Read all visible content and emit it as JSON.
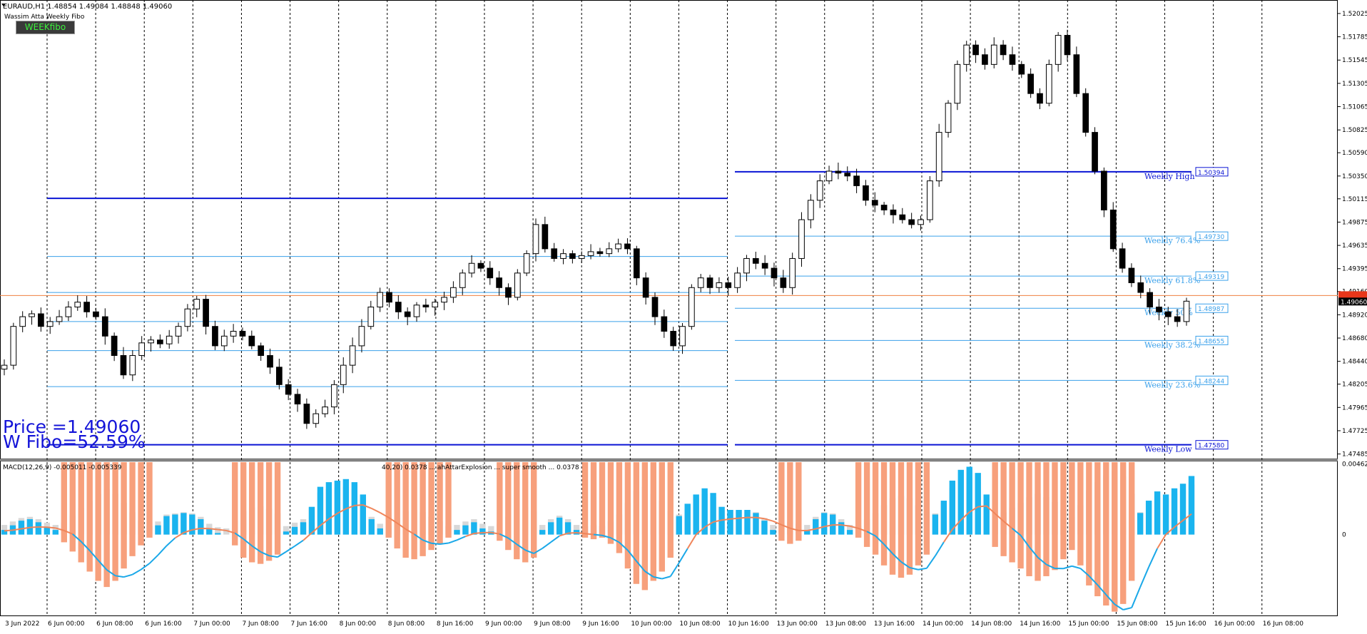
{
  "header": {
    "symbol_line": "EURAUD,H1  1.48854 1.49084 1.48848 1.49060",
    "indicator_name": "Wassim Atta Weekly Fibo",
    "week_button": "WEEKfibo"
  },
  "overlay": {
    "price_text": "Price =1.49060",
    "fibo_text": "W Fibo=52.59%"
  },
  "colors": {
    "bull_candle": "#ffffff",
    "bear_candle": "#000000",
    "fibo_dark": "#0a14d4",
    "fibo_light": "#3aa0ea",
    "macd_hist_pos": "#1ab4ef",
    "macd_hist_neg": "#f7a07c",
    "macd_signal_pos": "#f0855a",
    "macd_signal_neg": "#1aa8e8",
    "shadow_hist": "#d8d8d8",
    "price_line": "#f08040"
  },
  "chart_data": [
    {
      "type": "candlestick",
      "title": "EURAUD,H1",
      "ohlc_current": {
        "open": 1.48854,
        "high": 1.49084,
        "low": 1.48848,
        "close": 1.4906
      },
      "ylim": [
        1.4746,
        1.5212
      ],
      "y_ticks": [
        "1.52025",
        "1.51785",
        "1.51545",
        "1.51305",
        "1.51065",
        "1.50825",
        "1.50590",
        "1.50350",
        "1.50115",
        "1.49875",
        "1.49635",
        "1.49395",
        "1.49160",
        "1.48920",
        "1.48680",
        "1.48440",
        "1.48205",
        "1.47965",
        "1.47725",
        "1.47485"
      ],
      "current_price_label": "1.49060",
      "current_price_line": "1.49118",
      "x_ticks": [
        "3 Jun 2022",
        "6 Jun 00:00",
        "6 Jun 08:00",
        "6 Jun 16:00",
        "7 Jun 00:00",
        "7 Jun 08:00",
        "7 Jun 16:00",
        "8 Jun 00:00",
        "8 Jun 08:00",
        "8 Jun 16:00",
        "9 Jun 00:00",
        "9 Jun 08:00",
        "9 Jun 16:00",
        "10 Jun 00:00",
        "10 Jun 08:00",
        "10 Jun 16:00",
        "13 Jun 00:00",
        "13 Jun 08:00",
        "13 Jun 16:00",
        "14 Jun 00:00",
        "14 Jun 08:00",
        "14 Jun 16:00",
        "15 Jun 00:00",
        "15 Jun 08:00",
        "15 Jun 16:00",
        "16 Jun 00:00",
        "16 Jun 08:00"
      ],
      "close_path": [
        1.484,
        1.488,
        1.489,
        1.4893,
        1.488,
        1.4885,
        1.489,
        1.49,
        1.4905,
        1.4895,
        1.489,
        1.487,
        1.485,
        1.483,
        1.485,
        1.4863,
        1.4866,
        1.4862,
        1.487,
        1.488,
        1.4898,
        1.4908,
        1.488,
        1.486,
        1.487,
        1.4875,
        1.487,
        1.486,
        1.485,
        1.4838,
        1.482,
        1.481,
        1.48,
        1.478,
        1.479,
        1.4797,
        1.482,
        1.484,
        1.486,
        1.488,
        1.49,
        1.4915,
        1.4905,
        1.4895,
        1.489,
        1.4902,
        1.49,
        1.4905,
        1.491,
        1.492,
        1.4935,
        1.4945,
        1.494,
        1.493,
        1.492,
        1.491,
        1.4935,
        1.4955,
        1.4985,
        1.496,
        1.495,
        1.4955,
        1.495,
        1.4953,
        1.4957,
        1.4955,
        1.496,
        1.4965,
        1.496,
        1.493,
        1.491,
        1.489,
        1.4875,
        1.486,
        1.488,
        1.492,
        1.493,
        1.492,
        1.4925,
        1.492,
        1.4935,
        1.495,
        1.4945,
        1.494,
        1.493,
        1.492,
        1.495,
        1.499,
        1.501,
        1.503,
        1.504,
        1.5038,
        1.5035,
        1.5025,
        1.501,
        1.5005,
        1.5,
        1.4995,
        1.499,
        1.4985,
        1.499,
        1.503,
        1.508,
        1.511,
        1.515,
        1.517,
        1.516,
        1.515,
        1.517,
        1.516,
        1.515,
        1.514,
        1.512,
        1.511,
        1.515,
        1.518,
        1.516,
        1.512,
        1.508,
        1.504,
        1.5,
        1.496,
        1.494,
        1.4925,
        1.4915,
        1.49,
        1.4895,
        1.489,
        1.4885,
        1.4906
      ],
      "weekly_fibo": [
        {
          "name": "Weekly High",
          "value": 1.50394,
          "label": "1.50394"
        },
        {
          "name": "Weekly 76.4%",
          "value": 1.4973,
          "label": "1.49730"
        },
        {
          "name": "Weekly 61.8%",
          "value": 1.49319,
          "label": "1.49319"
        },
        {
          "name": "Weekly 50%",
          "value": 1.48987,
          "label": "1.48987"
        },
        {
          "name": "Weekly 38.2%",
          "value": 1.48655,
          "label": "1.48655"
        },
        {
          "name": "Weekly 23.6%",
          "value": 1.48244,
          "label": "1.48244"
        },
        {
          "name": "Weekly Low",
          "value": 1.4758,
          "label": "1.47580"
        }
      ],
      "prior_week_levels": {
        "high": 1.5012,
        "low": 1.4758
      }
    },
    {
      "type": "bar",
      "title": "MACD(12,26,9)",
      "header_text": "MACD(12,26,9) -0.005011 -0.005339",
      "mid_text": "40,20) 0.0378 ... ahAttarExplosion ... super smooth ... 0.0378",
      "y_ticks": [
        "0.004622",
        "0"
      ],
      "histogram": [
        0.0003,
        0.0006,
        0.0009,
        0.001,
        0.0008,
        0.0005,
        0.0003,
        -0.0005,
        -0.0011,
        -0.0018,
        -0.0024,
        -0.003,
        -0.0034,
        -0.003,
        -0.0022,
        -0.0014,
        -0.0007,
        -0.0002,
        0.0006,
        0.0012,
        0.0013,
        0.0014,
        0.0013,
        0.001,
        0.0004,
        0.0001,
        0.0,
        -0.0007,
        -0.0015,
        -0.0018,
        -0.0019,
        -0.0017,
        -0.0013,
        0.0002,
        0.0005,
        0.0008,
        0.0018,
        0.0031,
        0.0034,
        0.0035,
        0.0036,
        0.0034,
        0.0026,
        0.001,
        0.0004,
        -0.0002,
        -0.0009,
        -0.0015,
        -0.0016,
        -0.0014,
        -0.001,
        -0.0006,
        -0.0002,
        0.0003,
        0.0006,
        0.0008,
        0.0004,
        0.0002,
        -0.0004,
        -0.001,
        -0.0016,
        -0.0018,
        -0.0015,
        0.0003,
        0.0008,
        0.0011,
        0.0008,
        0.0003,
        -0.0002,
        -0.0003,
        -0.0002,
        -0.0006,
        -0.0012,
        -0.0022,
        -0.0032,
        -0.0036,
        -0.003,
        -0.0024,
        -0.0015,
        0.0012,
        0.002,
        0.0026,
        0.003,
        0.0027,
        0.0018,
        0.0016,
        0.0016,
        0.0016,
        0.0014,
        0.0009,
        0.0003,
        -0.0004,
        -0.0006,
        -0.0004,
        0.0003,
        0.001,
        0.0014,
        0.0013,
        0.0008,
        0.0003,
        -0.0002,
        -0.0008,
        -0.0013,
        -0.002,
        -0.0026,
        -0.0028,
        -0.0026,
        -0.002,
        -0.0013,
        0.0013,
        0.0022,
        0.0035,
        0.0042,
        0.0044,
        0.004,
        0.0026,
        -0.0008,
        -0.0014,
        -0.0018,
        -0.0022,
        -0.0027,
        -0.003,
        -0.0027,
        -0.0023,
        -0.0016,
        -0.001,
        -0.002,
        -0.0033,
        -0.004,
        -0.0046,
        -0.005,
        -0.0045,
        -0.003,
        0.0014,
        0.0022,
        0.0028,
        0.0026,
        0.003,
        0.0033,
        0.0038
      ],
      "ylim": [
        -0.0052,
        0.0047
      ]
    }
  ]
}
